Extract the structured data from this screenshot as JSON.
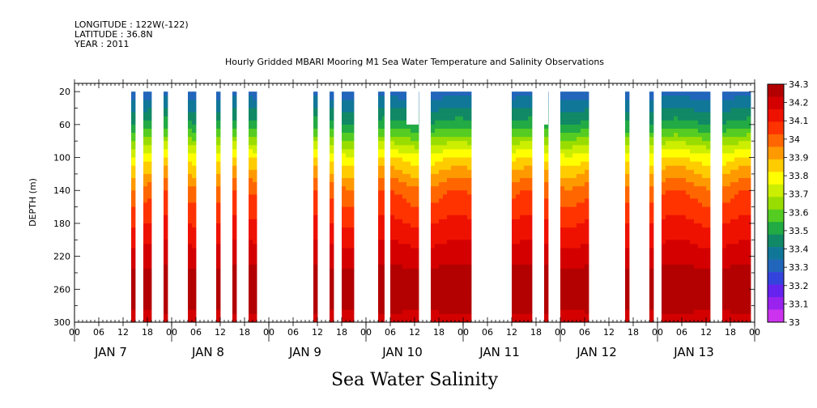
{
  "header": {
    "longitude": "LONGITUDE : 122W(-122)",
    "latitude": "LATITUDE : 36.8N",
    "year": "YEAR : 2011"
  },
  "chart_data": {
    "type": "heatmap",
    "title": "Hourly Gridded MBARI Mooring M1 Sea Water Temperature and Salinity Observations",
    "ylabel": "DEPTH (m)",
    "xlabel": "Sea Water Salinity",
    "y_ticks": [
      "20",
      "60",
      "100",
      "140",
      "180",
      "220",
      "260",
      "300"
    ],
    "ylim": [
      10,
      300
    ],
    "y_reversed": true,
    "xlim_hours": [
      0,
      168
    ],
    "x_hour_ticks": [
      "00",
      "06",
      "12",
      "18",
      "00",
      "06",
      "12",
      "18",
      "00",
      "06",
      "12",
      "18",
      "00",
      "06",
      "12",
      "18",
      "00",
      "06",
      "12",
      "18",
      "00",
      "06",
      "12",
      "18",
      "00",
      "06",
      "12",
      "18",
      "00"
    ],
    "day_labels": [
      "JAN  7",
      "JAN  8",
      "JAN  9",
      "JAN 10",
      "JAN 11",
      "JAN 12",
      "JAN 13"
    ],
    "colorbar": {
      "levels": [
        "34.3",
        "34.2",
        "34.1",
        "34",
        "33.9",
        "33.8",
        "33.7",
        "33.6",
        "33.5",
        "33.4",
        "33.3",
        "33.2",
        "33.1",
        "33"
      ],
      "colors": [
        "#b30000",
        "#d40000",
        "#ee1100",
        "#ff3300",
        "#ff6600",
        "#ff9900",
        "#ffcc00",
        "#ffff00",
        "#ccee00",
        "#99dd00",
        "#55cc22",
        "#22aa44",
        "#118866",
        "#117799",
        "#2266bb",
        "#3344dd",
        "#6622ee",
        "#9922ee",
        "#cc33ee"
      ]
    },
    "data_segments_hours": [
      [
        14,
        15
      ],
      [
        17,
        19
      ],
      [
        22,
        23
      ],
      [
        28,
        30
      ],
      [
        35,
        36
      ],
      [
        39,
        40
      ],
      [
        43,
        45
      ],
      [
        59,
        60
      ],
      [
        63,
        64
      ],
      [
        66,
        69
      ],
      [
        75,
        76.5
      ],
      [
        78,
        85
      ],
      [
        88,
        98
      ],
      [
        108,
        113
      ],
      [
        116,
        117
      ],
      [
        120,
        127
      ],
      [
        136,
        137
      ],
      [
        142,
        143
      ],
      [
        145,
        157
      ],
      [
        160,
        167
      ]
    ],
    "short_segments_hours": [
      [
        82,
        85,
        60
      ],
      [
        116,
        117,
        60
      ]
    ],
    "salinity_profile": [
      {
        "depth": 20,
        "value": 33.3
      },
      {
        "depth": 40,
        "value": 33.4
      },
      {
        "depth": 60,
        "value": 33.5
      },
      {
        "depth": 80,
        "value": 33.65
      },
      {
        "depth": 100,
        "value": 33.8
      },
      {
        "depth": 120,
        "value": 33.9
      },
      {
        "depth": 140,
        "value": 34.0
      },
      {
        "depth": 180,
        "value": 34.1
      },
      {
        "depth": 220,
        "value": 34.2
      },
      {
        "depth": 260,
        "value": 34.3
      },
      {
        "depth": 300,
        "value": 34.2
      }
    ]
  }
}
